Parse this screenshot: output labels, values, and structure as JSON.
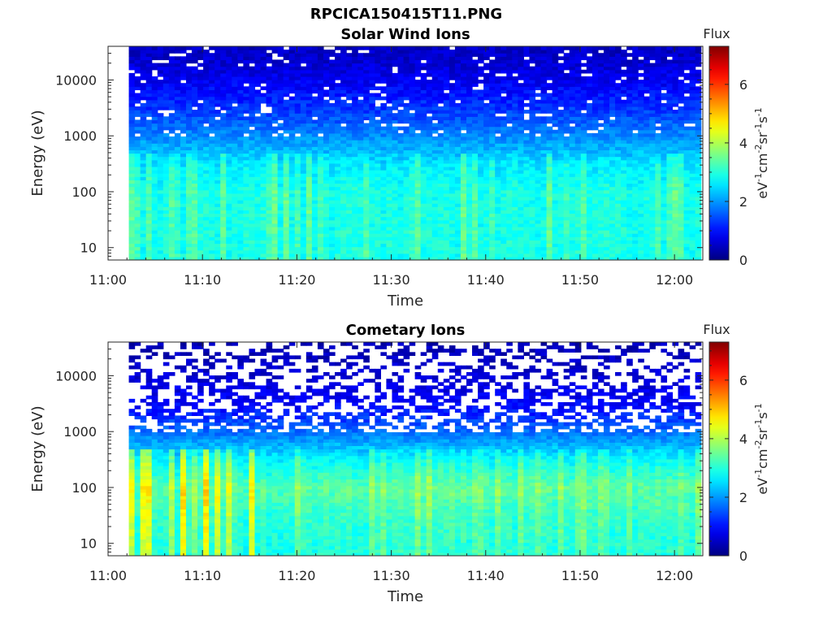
{
  "figure_title": "RPCICA150415T11.PNG",
  "chart_data": [
    {
      "type": "heatmap",
      "title": "Solar Wind Ions",
      "xlabel": "Time",
      "ylabel": "Energy (eV)",
      "x_ticks": [
        "11:00",
        "11:10",
        "11:20",
        "11:30",
        "11:40",
        "11:50",
        "12:00"
      ],
      "x_tick_minutes": [
        0,
        10,
        20,
        30,
        40,
        50,
        60
      ],
      "xlim_minutes": [
        0,
        63
      ],
      "data_start_minute": 2.2,
      "data_end_minute": 62.8,
      "y_scale": "log",
      "ylim": [
        6,
        40000
      ],
      "y_ticks": [
        10,
        100,
        1000,
        10000
      ],
      "y_tick_labels": [
        "10",
        "100",
        "1000",
        "10000"
      ],
      "colorbar": {
        "label": "Flux",
        "unit_label": "eV-1cm-2sr-1s-1",
        "range": [
          0,
          7.3
        ],
        "ticks": [
          0,
          2,
          4,
          6
        ],
        "tick_labels": [
          "0",
          "2",
          "4",
          "6"
        ],
        "colormap": "jet"
      },
      "profile": {
        "energies_eV": [
          10,
          30,
          100,
          300,
          1000,
          3000,
          10000,
          30000
        ],
        "flux_log": [
          2.9,
          2.9,
          2.9,
          2.6,
          1.9,
          1.3,
          0.8,
          0.5
        ]
      }
    },
    {
      "type": "heatmap",
      "title": "Cometary Ions",
      "xlabel": "Time",
      "ylabel": "Energy (eV)",
      "x_ticks": [
        "11:00",
        "11:10",
        "11:20",
        "11:30",
        "11:40",
        "11:50",
        "12:00"
      ],
      "x_tick_minutes": [
        0,
        10,
        20,
        30,
        40,
        50,
        60
      ],
      "xlim_minutes": [
        0,
        63
      ],
      "data_start_minute": 2.2,
      "data_end_minute": 62.8,
      "y_scale": "log",
      "ylim": [
        6,
        40000
      ],
      "y_ticks": [
        10,
        100,
        1000,
        10000
      ],
      "y_tick_labels": [
        "10",
        "100",
        "1000",
        "10000"
      ],
      "colorbar": {
        "label": "Flux",
        "unit_label": "eV-1cm-2sr-1s-1",
        "range": [
          0,
          7.3
        ],
        "ticks": [
          0,
          2,
          4,
          6
        ],
        "tick_labels": [
          "0",
          "2",
          "4",
          "6"
        ],
        "colormap": "jet"
      },
      "profile": {
        "energies_eV": [
          10,
          30,
          100,
          300,
          1000,
          3000,
          10000,
          30000
        ],
        "flux_log": [
          3.0,
          3.1,
          3.4,
          2.8,
          1.7,
          0.9,
          0.6,
          0.4
        ]
      }
    }
  ]
}
